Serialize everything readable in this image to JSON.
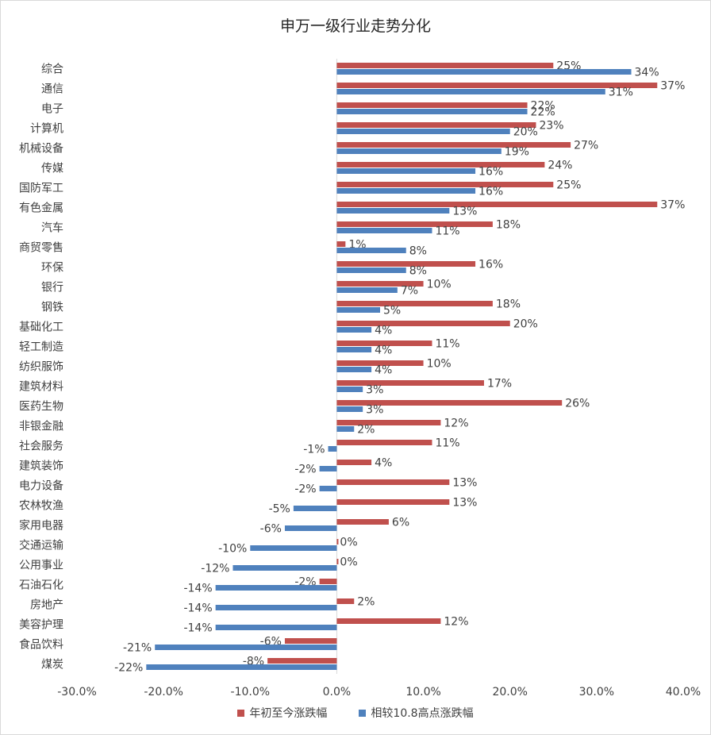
{
  "chart_data": {
    "type": "bar",
    "orientation": "horizontal",
    "title": "申万一级行业走势分化",
    "categories": [
      "综合",
      "通信",
      "电子",
      "计算机",
      "机械设备",
      "传媒",
      "国防军工",
      "有色金属",
      "汽车",
      "商贸零售",
      "环保",
      "银行",
      "钢铁",
      "基础化工",
      "轻工制造",
      "纺织服饰",
      "建筑材料",
      "医药生物",
      "非银金融",
      "社会服务",
      "建筑装饰",
      "电力设备",
      "农林牧渔",
      "家用电器",
      "交通运输",
      "公用事业",
      "石油石化",
      "房地产",
      "美容护理",
      "食品饮料",
      "煤炭"
    ],
    "series": [
      {
        "name": "年初至今涨跌幅",
        "color": "#c0504d",
        "values": [
          25,
          37,
          22,
          23,
          27,
          24,
          25,
          37,
          18,
          1,
          16,
          10,
          18,
          20,
          11,
          10,
          17,
          26,
          12,
          11,
          4,
          13,
          13,
          6,
          0,
          0,
          -2,
          2,
          12,
          -6,
          -8
        ],
        "labels": [
          "25%",
          "37%",
          "22%",
          "23%",
          "27%",
          "24%",
          "25%",
          "37%",
          "18%",
          "1%",
          "16%",
          "10%",
          "18%",
          "20%",
          "11%",
          "10%",
          "17%",
          "26%",
          "12%",
          "11%",
          "4%",
          "13%",
          "13%",
          "6%",
          "0%",
          "0%",
          "-2%",
          "2%",
          "12%",
          "-6%",
          "-8%"
        ]
      },
      {
        "name": "相较10.8高点涨跌幅",
        "color": "#4f81bd",
        "values": [
          34,
          31,
          22,
          20,
          19,
          16,
          16,
          13,
          11,
          8,
          8,
          7,
          5,
          4,
          4,
          4,
          3,
          3,
          2,
          -1,
          -2,
          -2,
          -5,
          -6,
          -10,
          -12,
          -14,
          -14,
          -14,
          -21,
          -22
        ],
        "labels": [
          "34%",
          "31%",
          "22%",
          "20%",
          "19%",
          "16%",
          "16%",
          "13%",
          "11%",
          "8%",
          "8%",
          "7%",
          "5%",
          "4%",
          "4%",
          "4%",
          "3%",
          "3%",
          "2%",
          "-1%",
          "-2%",
          "-2%",
          "-5%",
          "-6%",
          "-10%",
          "-12%",
          "-14%",
          "-14%",
          "-14%",
          "-21%",
          "-22%"
        ]
      }
    ],
    "xlim": [
      -30,
      40
    ],
    "xticks": [
      "-30.0%",
      "-20.0%",
      "-10.0%",
      "0.0%",
      "10.0%",
      "20.0%",
      "30.0%",
      "40.0%"
    ],
    "grid": false,
    "legend_position": "bottom"
  }
}
